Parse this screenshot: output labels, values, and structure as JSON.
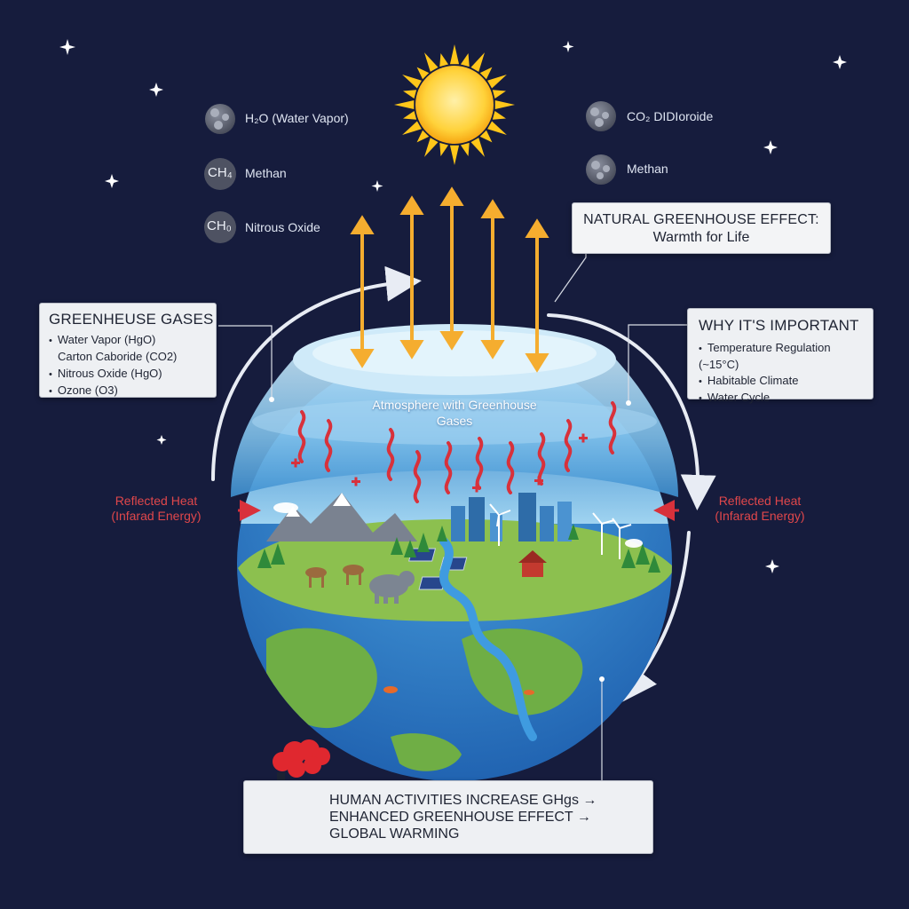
{
  "gases_left": [
    {
      "formula": "",
      "label": "H₂O (Water Vapor)",
      "icon": "water-vapor-bubbles-icon"
    },
    {
      "formula": "CH₄",
      "label": "Methan",
      "icon": "methane-circle-icon"
    },
    {
      "formula": "CH₀",
      "label": "Nitrous Oxide",
      "icon": "nitrous-oxide-circle-icon"
    }
  ],
  "gases_right": [
    {
      "label": "CO₂ DIDIoroide",
      "icon": "co2-bubbles-icon"
    },
    {
      "label": "Methan",
      "icon": "methane-bubbles-icon"
    }
  ],
  "natural_effect": {
    "title": "NATURAL GREENHOUSE EFFECT:",
    "subtitle": "Warmth for Life"
  },
  "greenhouse_gases": {
    "title": "GREENHEUSE GASES",
    "items": [
      "Water Vapor (HgO)",
      "Carton Caboride (CO2)",
      "Nitrous Oxide (HgO)",
      "Ozone (O3)"
    ]
  },
  "importance": {
    "title": "WHY IT'S IMPORTANT",
    "items": [
      "Temperature Regulation (~15°C)",
      "Habitable Climate",
      "Water Cycle"
    ]
  },
  "atmosphere_label": "Atmosphere with Greenhouse Gases",
  "reflected_left": {
    "line1": "Reflected Heat",
    "line2": "(Infarad Energy)"
  },
  "reflected_right": {
    "line1": "Reflected Heat",
    "line2": "(Infarad Energy)"
  },
  "human_activities": {
    "line1": "HUMAN ACTIVITIES INCREASE GHgs →",
    "line2": "ENHANCED GREENHOUSE EFFECT →",
    "line3": "GLOBAL WARMING"
  },
  "colors": {
    "background": "#161c3d",
    "sun": "#ffc61a",
    "heat_arrow": "#f5ad2f",
    "infrared_wave": "#d8313b",
    "ocean": "#2f78c6",
    "land": "#7fb54a",
    "atmosphere": "#7fc0ea"
  }
}
